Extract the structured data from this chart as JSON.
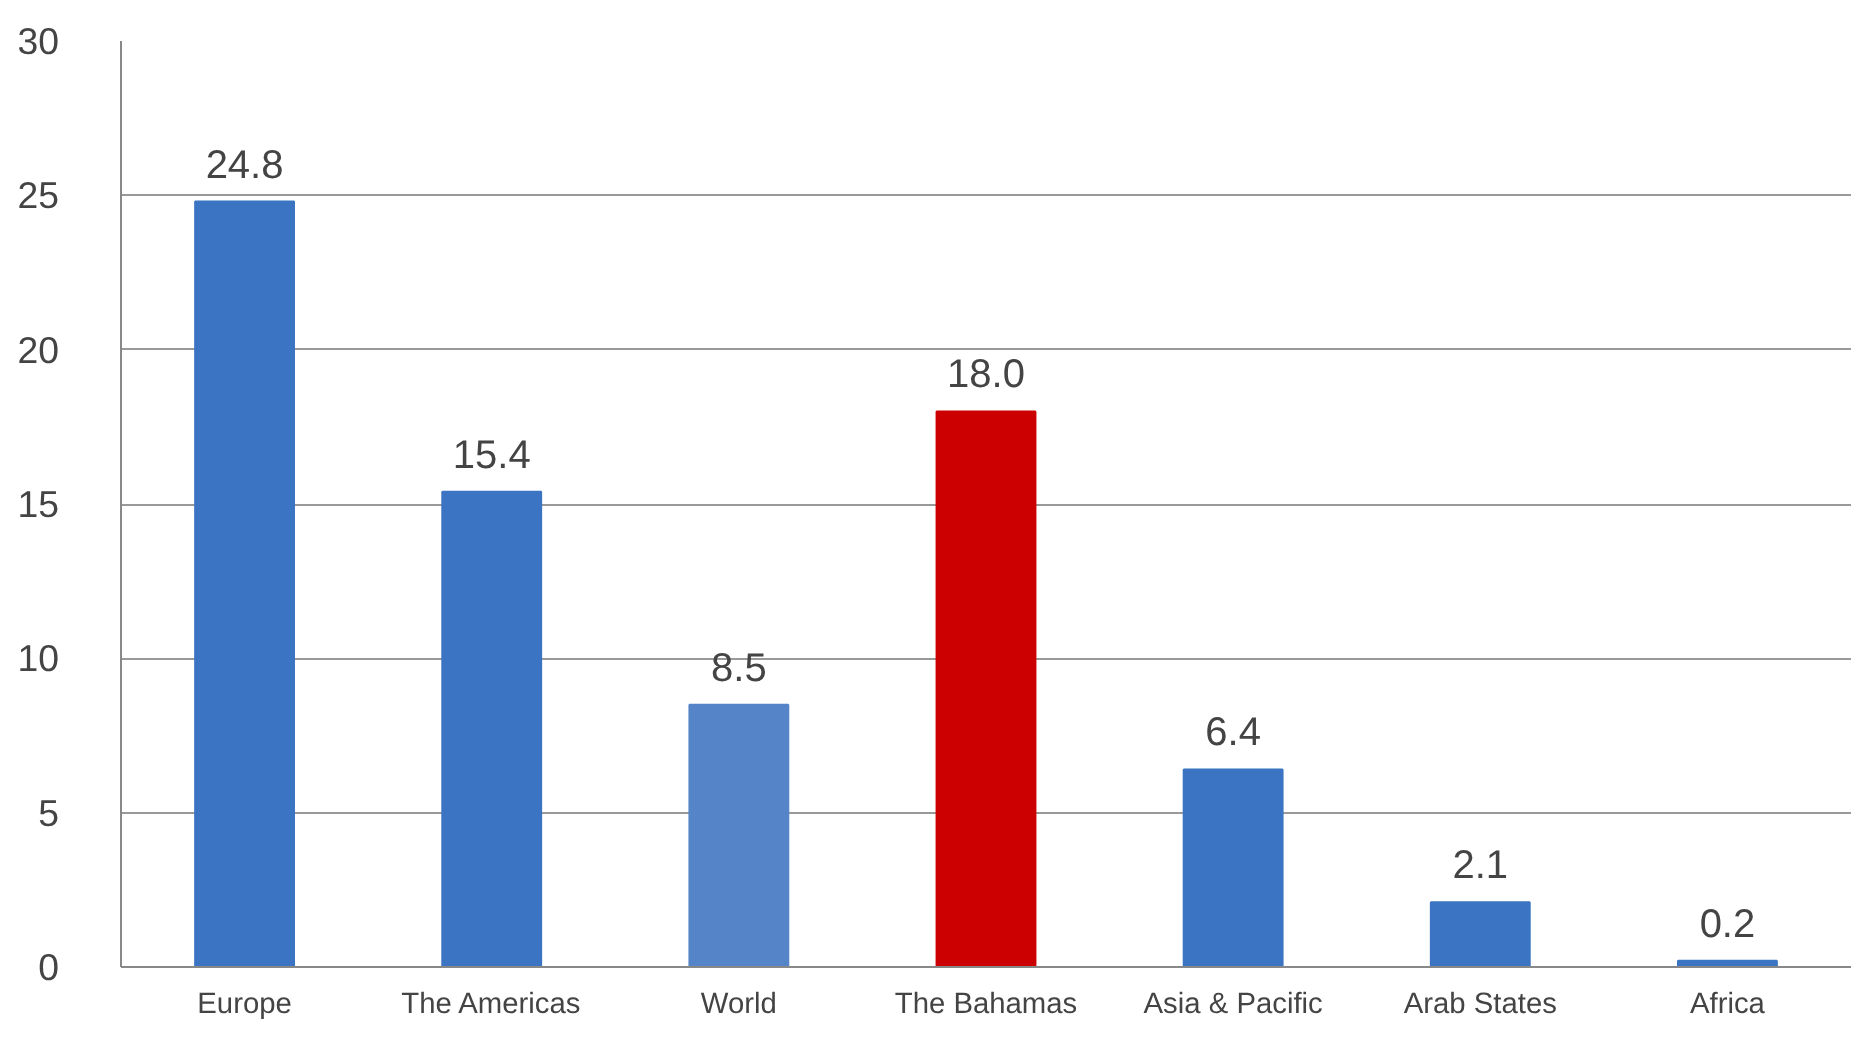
{
  "chart_data": {
    "type": "bar",
    "categories": [
      "Europe",
      "The Americas",
      "World",
      "The Bahamas",
      "Asia & Pacific",
      "Arab States",
      "Africa"
    ],
    "values": [
      24.8,
      15.4,
      8.5,
      18.0,
      6.4,
      2.1,
      0.2
    ],
    "colors": [
      "#3b74c2",
      "#3b74c2",
      "#5585c8",
      "#cc0000",
      "#3b74c2",
      "#3b74c2",
      "#3b74c2"
    ],
    "value_labels": [
      "24.8",
      "15.4",
      "8.5",
      "18.0",
      "6.4",
      "2.1",
      "0.2"
    ],
    "ylim": [
      0,
      30
    ],
    "yticks": [
      0,
      5,
      10,
      15,
      20,
      25,
      30
    ],
    "grid": "y"
  }
}
